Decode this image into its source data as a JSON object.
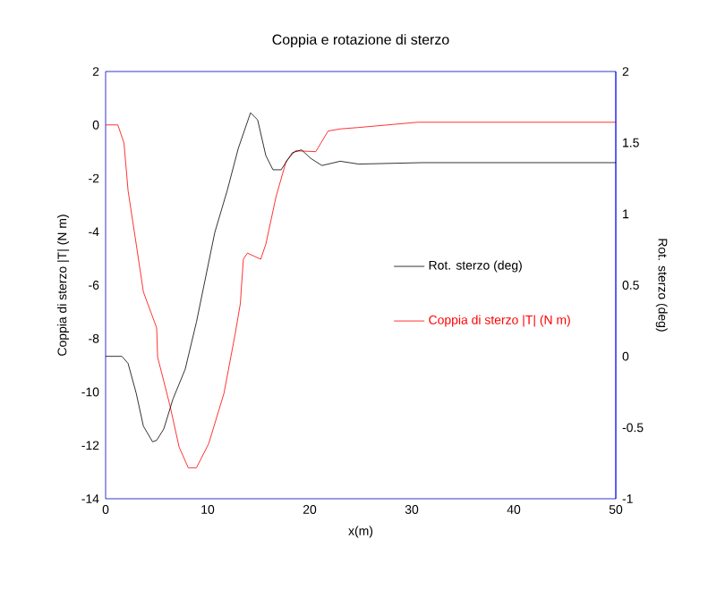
{
  "chart_data": {
    "type": "line",
    "title": "Coppia e rotazione di sterzo",
    "xlabel": "x(m)",
    "ylabel": "Coppia di sterzo |T| (N m)",
    "y2label": "Rot. sterzo (deg)",
    "xlim": [
      0,
      50
    ],
    "xticks": [
      0,
      10,
      20,
      30,
      40,
      50
    ],
    "ylim": [
      -14,
      2
    ],
    "yticks": [
      -14,
      -12,
      -10,
      -8,
      -6,
      -4,
      -2,
      0,
      2
    ],
    "y2lim": [
      -1,
      2
    ],
    "y2ticks": [
      -1,
      -0.5,
      0,
      0.5,
      1,
      1.5,
      2
    ],
    "legend": "right",
    "grid": false,
    "series": [
      {
        "name": "Rot. sterzo (deg)",
        "color": "#000000",
        "axis": "y2",
        "x": [
          0,
          1.6,
          2.2,
          3.0,
          3.7,
          4.6,
          5.0,
          5.7,
          6.6,
          7.8,
          8.9,
          9.5,
          10.7,
          11.9,
          13.0,
          14.2,
          14.9,
          15.7,
          16.4,
          17.2,
          18.3,
          19.2,
          20.1,
          21.2,
          23.0,
          24.8,
          31.0,
          50
        ],
        "values": [
          0,
          0,
          -0.05,
          -0.26,
          -0.49,
          -0.6,
          -0.59,
          -0.51,
          -0.3,
          -0.09,
          0.24,
          0.45,
          0.87,
          1.16,
          1.46,
          1.71,
          1.66,
          1.41,
          1.31,
          1.31,
          1.43,
          1.45,
          1.39,
          1.34,
          1.37,
          1.35,
          1.36,
          1.36
        ]
      },
      {
        "name": "Coppia di sterzo |T| (N m)",
        "color": "#ff0000",
        "axis": "y",
        "x": [
          0,
          1.2,
          1.8,
          2.2,
          3.0,
          3.7,
          5.0,
          5.1,
          6.3,
          7.2,
          8.1,
          8.9,
          10.1,
          11.6,
          12.7,
          13.2,
          13.5,
          13.9,
          15.2,
          15.7,
          16.7,
          17.7,
          18.6,
          20.6,
          21.8,
          23.0,
          24.7,
          30.6,
          50
        ],
        "values": [
          0,
          0,
          -0.68,
          -2.46,
          -4.47,
          -6.25,
          -7.6,
          -8.7,
          -10.5,
          -12.06,
          -12.84,
          -12.84,
          -11.94,
          -10.05,
          -7.82,
          -6.7,
          -5.03,
          -4.8,
          -5.03,
          -4.47,
          -2.69,
          -1.35,
          -0.97,
          -1.0,
          -0.23,
          -0.15,
          -0.1,
          0.1,
          0.1
        ]
      }
    ]
  }
}
